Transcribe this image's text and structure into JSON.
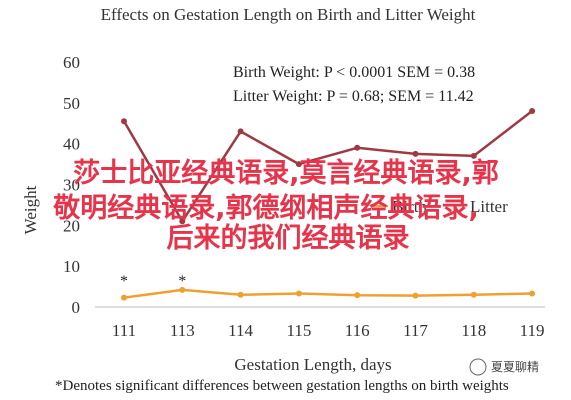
{
  "chart_data": {
    "type": "line",
    "title": "Effects on Gestation Length on Birth and Litter Weight",
    "xlabel": "Gestation Length, days",
    "ylabel": "Weight",
    "categories": [
      "111",
      "113",
      "114",
      "115",
      "116",
      "117",
      "118",
      "119"
    ],
    "ylim": [
      0,
      60
    ],
    "yticks": [
      "0",
      "10",
      "20",
      "30",
      "40",
      "50",
      "60"
    ],
    "grid": false,
    "series": [
      {
        "name": "Birth Weight",
        "color": "#f0a030",
        "values": [
          2.3,
          4.2,
          3.0,
          3.3,
          2.9,
          2.8,
          3.0,
          3.3
        ]
      },
      {
        "name": "Litter Weight",
        "color": "#9e3a44",
        "values": [
          45.5,
          21,
          43,
          35,
          39,
          37.5,
          37,
          48
        ]
      }
    ],
    "stat_annotations": [
      "Birth Weight: P < 0.0001 SEM = 0.38",
      "Litter Weight: P = 0.68; SEM = 11.42"
    ],
    "significance_markers": [
      {
        "category": "111",
        "text": "*"
      },
      {
        "category": "113",
        "text": "*"
      }
    ],
    "legend_partial": [
      "Birth",
      "Litter"
    ],
    "legend_placement": "center",
    "footnote": "*Denotes significant differences between gestation lengths on birth weights"
  },
  "overlay": {
    "lines": [
      "莎士比亚经典语录,莫言经典语录,郭",
      "敬明经典语录,郭德纲相声经典语录,",
      "后来的我们经典语录"
    ]
  },
  "watermark": {
    "text": "夏夏聊精"
  }
}
